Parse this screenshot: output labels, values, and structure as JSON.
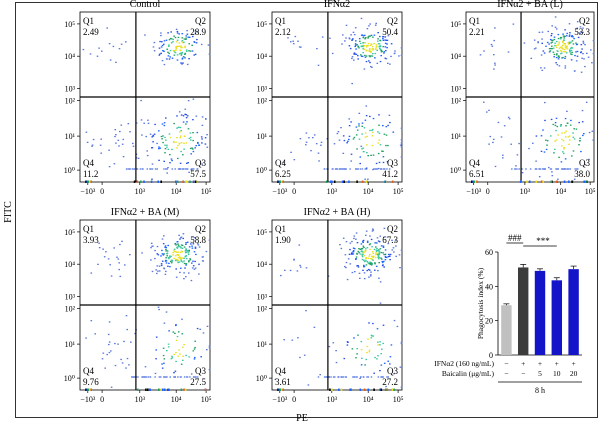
{
  "figure": {
    "y_axis_title": "FITC",
    "x_axis_title": "PE"
  },
  "chart_data": [
    {
      "type": "scatter",
      "title": "Control",
      "quadrants": {
        "Q1": "2.49",
        "Q2": "28.9",
        "Q3": "57.5",
        "Q4": "11.2"
      },
      "x_ticks": [
        "−10³",
        "0",
        "10³",
        "10⁴",
        "10⁵"
      ],
      "y_ticks": [
        "10⁰",
        "10¹",
        "10²",
        "10³",
        "10⁴",
        "10⁵"
      ],
      "scale": "biexponential"
    },
    {
      "type": "scatter",
      "title": "IFNα2",
      "quadrants": {
        "Q1": "2.12",
        "Q2": "50.4",
        "Q3": "41.2",
        "Q4": "6.25"
      },
      "x_ticks": [
        "−10³",
        "0",
        "10³",
        "10⁴",
        "10⁵"
      ],
      "y_ticks": [
        "10⁰",
        "10¹",
        "10²",
        "10³",
        "10⁴",
        "10⁵"
      ],
      "scale": "biexponential"
    },
    {
      "type": "scatter",
      "title": "IFNα2 + BA (L)",
      "quadrants": {
        "Q1": "2.21",
        "Q2": "53.3",
        "Q3": "38.0",
        "Q4": "6.51"
      },
      "x_ticks": [
        "−10³",
        "0",
        "10³",
        "10⁴",
        "10⁵"
      ],
      "y_ticks": [
        "10⁰",
        "10¹",
        "10²",
        "10³",
        "10⁴",
        "10⁵"
      ],
      "scale": "biexponential"
    },
    {
      "type": "scatter",
      "title": "IFNα2 + BA (M)",
      "quadrants": {
        "Q1": "3.93",
        "Q2": "58.8",
        "Q3": "27.5",
        "Q4": "9.76"
      },
      "x_ticks": [
        "−10³",
        "0",
        "10³",
        "10⁴",
        "10⁵"
      ],
      "y_ticks": [
        "10⁰",
        "10¹",
        "10²",
        "10³",
        "10⁴",
        "10⁵"
      ],
      "scale": "biexponential"
    },
    {
      "type": "scatter",
      "title": "IFNα2 + BA (H)",
      "quadrants": {
        "Q1": "1.90",
        "Q2": "67.3",
        "Q3": "27.2",
        "Q4": "3.61"
      },
      "x_ticks": [
        "−10³",
        "0",
        "10³",
        "10⁴",
        "10⁵"
      ],
      "y_ticks": [
        "10⁰",
        "10¹",
        "10²",
        "10³",
        "10⁴",
        "10⁵"
      ],
      "scale": "biexponential"
    },
    {
      "type": "bar",
      "ylabel": "Phagocytosis index (%)",
      "ylim": [
        0,
        60
      ],
      "yticks": [
        0,
        20,
        40,
        60
      ],
      "values": [
        29,
        51,
        49,
        43.5,
        50
      ],
      "errors": [
        0.8,
        1.8,
        1.2,
        1.5,
        1.8
      ],
      "colors": [
        "#c0c0c0",
        "#3c3c3c",
        "#1414c8",
        "#1414c8",
        "#1414c8"
      ],
      "treatment_rows": [
        {
          "label": "IFNα2 (160 ng/mL)",
          "values": [
            "−",
            "+",
            "+",
            "+",
            "+"
          ]
        },
        {
          "label": "Baicalin (μg/mL)",
          "values": [
            "−",
            "−",
            "5",
            "10",
            "20"
          ]
        }
      ],
      "footer": "8 h",
      "significance": [
        {
          "text": "###",
          "from": 0,
          "to": 1
        },
        {
          "text": "***",
          "from": 1,
          "to": 3
        }
      ]
    }
  ]
}
